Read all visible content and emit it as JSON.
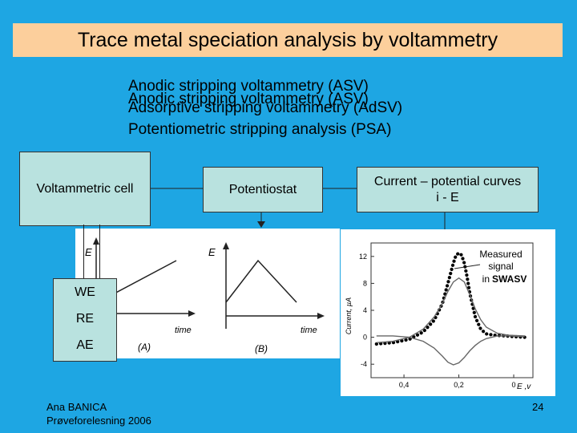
{
  "slide": {
    "title": "Trace metal speciation analysis by voltammetry",
    "bullets": [
      "Anodic stripping voltammetry (ASV)",
      "Anodic stripping voltammetry (ASV)",
      "Adsorptive stripping voltammetry (AdSV)",
      "Potentiometric stripping analysis (PSA)"
    ]
  },
  "diagram": {
    "cell": "Voltammetric cell",
    "potentiostat": "Potentiostat",
    "curves_line1": "Current – potential curves",
    "curves_line2": "i - E",
    "electrodes": [
      "WE",
      "RE",
      "AE"
    ]
  },
  "waveforms": {
    "a": {
      "y_label": "E",
      "x_label": "time",
      "caption": "(A)"
    },
    "b": {
      "y_label": "E",
      "x_label": "time",
      "caption": "(B)"
    }
  },
  "chart_data": {
    "type": "line",
    "xlabel": "E ,v",
    "ylabel": "Current, µA",
    "x_ticks": [
      "0,4",
      "0,2",
      "0"
    ],
    "y_ticks": [
      "12",
      "8",
      "4",
      "0",
      "-4"
    ],
    "xlim": [
      0.52,
      -0.07
    ],
    "ylim": [
      -6,
      14
    ],
    "annotation": [
      "Measured",
      "signal",
      "in",
      "SWASV"
    ],
    "series": [
      {
        "style": "dotted",
        "x": [
          0.5,
          0.44,
          0.38,
          0.33,
          0.29,
          0.26,
          0.24,
          0.22,
          0.21,
          0.2,
          0.19,
          0.18,
          0.17,
          0.16,
          0.14,
          0.12,
          0.1,
          0.07,
          0.03,
          0.0,
          -0.04
        ],
        "y": [
          -1.0,
          -0.8,
          -0.3,
          0.8,
          2.5,
          5.0,
          8.0,
          11.0,
          12.2,
          12.5,
          12.2,
          11.0,
          9.0,
          6.5,
          3.0,
          1.2,
          0.5,
          0.3,
          0.2,
          0.1,
          0.0
        ]
      },
      {
        "style": "line",
        "x": [
          0.5,
          0.44,
          0.38,
          0.33,
          0.29,
          0.26,
          0.24,
          0.22,
          0.2,
          0.18,
          0.16,
          0.14,
          0.12,
          0.1,
          0.06,
          0.02,
          -0.04
        ],
        "y": [
          -0.8,
          -0.6,
          0.0,
          1.2,
          3.0,
          5.0,
          6.8,
          8.2,
          8.8,
          8.2,
          6.3,
          4.2,
          2.6,
          1.5,
          0.6,
          0.3,
          0.2
        ]
      },
      {
        "style": "line",
        "x": [
          0.5,
          0.44,
          0.38,
          0.33,
          0.29,
          0.26,
          0.24,
          0.22,
          0.2,
          0.18,
          0.16,
          0.14,
          0.12,
          0.1,
          0.06,
          0.02,
          -0.04
        ],
        "y": [
          0.2,
          0.2,
          0.0,
          -0.6,
          -1.6,
          -2.8,
          -3.7,
          -4.1,
          -3.8,
          -3.0,
          -2.0,
          -1.2,
          -0.6,
          -0.2,
          0.2,
          0.2,
          0.1
        ]
      }
    ]
  },
  "footer": {
    "author": "Ana BANICA",
    "event": "Prøveforelesning 2006",
    "page": "24"
  }
}
